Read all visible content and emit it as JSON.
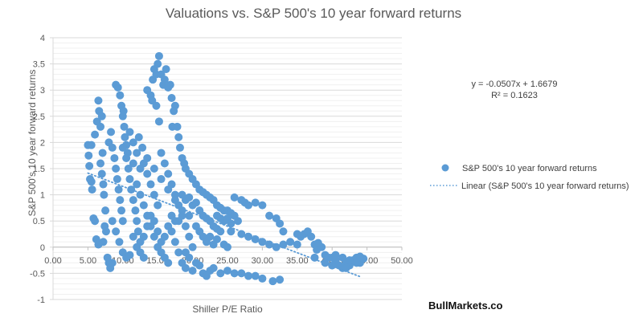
{
  "chart_data": {
    "type": "scatter",
    "title": "Valuations vs. S&P 500's 10 year forward returns",
    "xlabel": "Shiller P/E Ratio",
    "ylabel": "S&P 500's 10 year forward returns",
    "xlim": [
      0,
      50
    ],
    "ylim": [
      -1,
      4
    ],
    "x_ticks": [
      0,
      5,
      10,
      15,
      20,
      25,
      30,
      35,
      40,
      45,
      50
    ],
    "x_tick_labels": [
      "0.00",
      "5.00",
      "10.00",
      "15.00",
      "20.00",
      "25.00",
      "30.00",
      "35.00",
      "40.00",
      "45.00",
      "50.00"
    ],
    "y_ticks": [
      -1,
      -0.5,
      0,
      0.5,
      1,
      1.5,
      2,
      2.5,
      3,
      3.5,
      4
    ],
    "y_tick_labels": [
      "-1",
      "-0.5",
      "0",
      "0.5",
      "1",
      "1.5",
      "2",
      "2.5",
      "3",
      "3.5",
      "4"
    ],
    "grid": {
      "major_step": 0.5,
      "minor_step": 0.1,
      "axis": "y"
    },
    "legend_position": "right",
    "series": [
      {
        "name": "S&P 500's 10 year forward returns",
        "color": "#5B9BD5",
        "marker": "circle",
        "points": [
          [
            5.0,
            1.95
          ],
          [
            5.1,
            1.75
          ],
          [
            5.2,
            1.55
          ],
          [
            5.3,
            1.3
          ],
          [
            5.5,
            1.25
          ],
          [
            5.6,
            1.1
          ],
          [
            5.8,
            0.55
          ],
          [
            6.0,
            0.5
          ],
          [
            6.2,
            0.15
          ],
          [
            6.5,
            0.05
          ],
          [
            5.5,
            1.95
          ],
          [
            6.0,
            2.15
          ],
          [
            6.3,
            2.4
          ],
          [
            6.5,
            2.8
          ],
          [
            6.6,
            2.6
          ],
          [
            6.8,
            2.3
          ],
          [
            7.0,
            2.5
          ],
          [
            7.1,
            1.8
          ],
          [
            6.8,
            1.6
          ],
          [
            7.2,
            1.2
          ],
          [
            7.0,
            1.4
          ],
          [
            7.3,
            1.0
          ],
          [
            7.5,
            0.7
          ],
          [
            7.4,
            0.4
          ],
          [
            7.6,
            0.3
          ],
          [
            7.2,
            0.1
          ],
          [
            7.8,
            -0.2
          ],
          [
            8.0,
            -0.3
          ],
          [
            8.2,
            -0.4
          ],
          [
            8.5,
            -0.3
          ],
          [
            8.0,
            2.0
          ],
          [
            8.3,
            2.2
          ],
          [
            8.5,
            1.9
          ],
          [
            8.8,
            1.7
          ],
          [
            9.0,
            1.5
          ],
          [
            9.2,
            1.3
          ],
          [
            9.4,
            1.1
          ],
          [
            9.6,
            0.9
          ],
          [
            9.8,
            0.7
          ],
          [
            10.0,
            0.5
          ],
          [
            9.0,
            3.1
          ],
          [
            9.3,
            3.05
          ],
          [
            9.6,
            2.9
          ],
          [
            9.8,
            2.7
          ],
          [
            10.0,
            2.5
          ],
          [
            10.2,
            2.3
          ],
          [
            10.1,
            2.6
          ],
          [
            10.3,
            2.1
          ],
          [
            10.5,
            1.95
          ],
          [
            10.7,
            1.8
          ],
          [
            10.0,
            1.9
          ],
          [
            10.5,
            1.7
          ],
          [
            10.8,
            1.5
          ],
          [
            11.0,
            1.3
          ],
          [
            11.2,
            1.1
          ],
          [
            11.5,
            0.9
          ],
          [
            11.8,
            0.7
          ],
          [
            12.0,
            0.5
          ],
          [
            12.2,
            0.3
          ],
          [
            12.5,
            0.1
          ],
          [
            8.5,
            0.5
          ],
          [
            9.0,
            0.3
          ],
          [
            9.5,
            0.1
          ],
          [
            10.0,
            -0.1
          ],
          [
            10.5,
            -0.2
          ],
          [
            11.0,
            -0.15
          ],
          [
            11.5,
            0.2
          ],
          [
            12.0,
            0.0
          ],
          [
            12.5,
            -0.1
          ],
          [
            13.0,
            -0.2
          ],
          [
            11.0,
            2.2
          ],
          [
            11.5,
            2.0
          ],
          [
            12.0,
            1.8
          ],
          [
            12.3,
            2.1
          ],
          [
            12.8,
            1.9
          ],
          [
            13.0,
            1.6
          ],
          [
            13.5,
            1.4
          ],
          [
            14.0,
            1.2
          ],
          [
            14.5,
            1.0
          ],
          [
            15.0,
            0.8
          ],
          [
            12.0,
            1.2
          ],
          [
            12.5,
            1.0
          ],
          [
            13.0,
            0.8
          ],
          [
            13.5,
            0.6
          ],
          [
            14.0,
            0.4
          ],
          [
            14.5,
            0.2
          ],
          [
            15.0,
            0.0
          ],
          [
            15.5,
            -0.1
          ],
          [
            16.0,
            -0.2
          ],
          [
            16.5,
            -0.3
          ],
          [
            13.5,
            3.0
          ],
          [
            14.0,
            2.9
          ],
          [
            14.3,
            3.2
          ],
          [
            14.5,
            3.4
          ],
          [
            14.8,
            3.3
          ],
          [
            15.0,
            3.5
          ],
          [
            15.2,
            3.65
          ],
          [
            15.5,
            3.3
          ],
          [
            15.8,
            3.1
          ],
          [
            16.0,
            3.2
          ],
          [
            16.2,
            3.4
          ],
          [
            16.5,
            3.05
          ],
          [
            16.8,
            3.1
          ],
          [
            17.0,
            2.85
          ],
          [
            14.2,
            2.8
          ],
          [
            14.8,
            2.7
          ],
          [
            15.2,
            2.4
          ],
          [
            17.5,
            2.7
          ],
          [
            17.3,
            2.6
          ],
          [
            17.1,
            2.3
          ],
          [
            15.5,
            1.8
          ],
          [
            16.0,
            1.6
          ],
          [
            16.5,
            1.4
          ],
          [
            17.0,
            1.2
          ],
          [
            17.5,
            1.0
          ],
          [
            18.0,
            0.8
          ],
          [
            18.5,
            0.6
          ],
          [
            19.0,
            0.4
          ],
          [
            19.5,
            0.2
          ],
          [
            20.0,
            0.0
          ],
          [
            17.8,
            2.3
          ],
          [
            18.0,
            2.1
          ],
          [
            18.2,
            1.9
          ],
          [
            18.5,
            1.7
          ],
          [
            18.8,
            1.6
          ],
          [
            19.0,
            1.5
          ],
          [
            19.5,
            1.4
          ],
          [
            20.0,
            1.3
          ],
          [
            20.5,
            1.2
          ],
          [
            21.0,
            1.1
          ],
          [
            21.5,
            1.05
          ],
          [
            22.0,
            1.0
          ],
          [
            22.5,
            0.95
          ],
          [
            23.0,
            0.9
          ],
          [
            23.5,
            0.8
          ],
          [
            24.0,
            0.75
          ],
          [
            24.5,
            0.7
          ],
          [
            25.0,
            0.7
          ],
          [
            25.5,
            0.65
          ],
          [
            26.0,
            0.6
          ],
          [
            21.0,
            0.7
          ],
          [
            21.5,
            0.6
          ],
          [
            22.0,
            0.55
          ],
          [
            22.5,
            0.5
          ],
          [
            23.0,
            0.4
          ],
          [
            23.5,
            0.35
          ],
          [
            24.0,
            0.3
          ],
          [
            21.5,
            0.2
          ],
          [
            22.0,
            0.1
          ],
          [
            23.0,
            0.05
          ],
          [
            26.0,
            0.95
          ],
          [
            27.0,
            0.9
          ],
          [
            27.5,
            0.85
          ],
          [
            28.0,
            0.8
          ],
          [
            29.0,
            0.85
          ],
          [
            30.0,
            0.8
          ],
          [
            31.0,
            0.6
          ],
          [
            32.0,
            0.55
          ],
          [
            32.5,
            0.45
          ],
          [
            33.0,
            0.3
          ],
          [
            25.5,
            0.3
          ],
          [
            27.0,
            0.25
          ],
          [
            28.0,
            0.2
          ],
          [
            29.0,
            0.15
          ],
          [
            30.0,
            0.1
          ],
          [
            31.0,
            0.05
          ],
          [
            32.0,
            0.0
          ],
          [
            33.0,
            0.05
          ],
          [
            34.0,
            0.1
          ],
          [
            35.0,
            0.05
          ],
          [
            17.0,
            0.3
          ],
          [
            17.5,
            0.1
          ],
          [
            18.0,
            -0.1
          ],
          [
            18.5,
            -0.3
          ],
          [
            19.0,
            -0.4
          ],
          [
            20.0,
            -0.45
          ],
          [
            21.0,
            -0.35
          ],
          [
            21.5,
            -0.5
          ],
          [
            22.0,
            -0.55
          ],
          [
            22.5,
            -0.45
          ],
          [
            23.0,
            -0.4
          ],
          [
            24.0,
            -0.5
          ],
          [
            25.0,
            -0.45
          ],
          [
            26.0,
            -0.5
          ],
          [
            27.0,
            -0.5
          ],
          [
            28.0,
            -0.55
          ],
          [
            29.0,
            -0.55
          ],
          [
            30.0,
            -0.6
          ],
          [
            31.5,
            -0.65
          ],
          [
            32.5,
            -0.62
          ],
          [
            35.5,
            0.2
          ],
          [
            36.0,
            0.25
          ],
          [
            36.5,
            0.3
          ],
          [
            37.0,
            0.2
          ],
          [
            37.5,
            0.05
          ],
          [
            37.8,
            -0.05
          ],
          [
            37.5,
            -0.2
          ],
          [
            38.5,
            0.0
          ],
          [
            39.0,
            -0.15
          ],
          [
            39.5,
            -0.2
          ],
          [
            40.0,
            -0.2
          ],
          [
            40.5,
            -0.25
          ],
          [
            41.0,
            -0.35
          ],
          [
            41.5,
            -0.4
          ],
          [
            42.0,
            -0.3
          ],
          [
            42.5,
            -0.35
          ],
          [
            43.0,
            -0.25
          ],
          [
            43.5,
            -0.2
          ],
          [
            44.0,
            -0.3
          ],
          [
            44.5,
            -0.22
          ],
          [
            39.0,
            -0.3
          ],
          [
            40.5,
            -0.15
          ],
          [
            41.5,
            -0.2
          ],
          [
            42.5,
            -0.25
          ],
          [
            43.5,
            -0.3
          ],
          [
            44.0,
            -0.18
          ],
          [
            42.0,
            -0.4
          ],
          [
            40.0,
            -0.35
          ],
          [
            38.0,
            0.08
          ],
          [
            35.0,
            0.25
          ],
          [
            18.0,
            0.5
          ],
          [
            18.5,
            0.7
          ],
          [
            19.0,
            0.9
          ],
          [
            19.5,
            0.6
          ],
          [
            20.0,
            0.8
          ],
          [
            20.5,
            0.4
          ],
          [
            21.0,
            0.3
          ],
          [
            19.0,
            -0.1
          ],
          [
            19.5,
            -0.2
          ],
          [
            20.5,
            -0.3
          ],
          [
            13.0,
            0.2
          ],
          [
            13.5,
            0.4
          ],
          [
            14.0,
            0.6
          ],
          [
            14.5,
            0.5
          ],
          [
            15.0,
            0.3
          ],
          [
            15.5,
            0.1
          ],
          [
            16.0,
            0.2
          ],
          [
            16.5,
            0.4
          ],
          [
            17.0,
            0.6
          ],
          [
            17.5,
            0.5
          ],
          [
            11.5,
            1.6
          ],
          [
            12.5,
            1.5
          ],
          [
            13.5,
            1.7
          ],
          [
            14.5,
            1.5
          ],
          [
            15.5,
            1.3
          ],
          [
            16.5,
            1.1
          ],
          [
            17.5,
            0.9
          ],
          [
            18.5,
            1.0
          ],
          [
            19.5,
            0.95
          ],
          [
            20.5,
            0.85
          ],
          [
            24.5,
            0.5
          ],
          [
            25.5,
            0.45
          ],
          [
            26.5,
            0.5
          ],
          [
            23.5,
            0.6
          ],
          [
            24.0,
            0.55
          ],
          [
            25.0,
            0.55
          ],
          [
            22.5,
            0.2
          ],
          [
            23.5,
            0.15
          ],
          [
            24.5,
            0.05
          ],
          [
            25.0,
            0.0
          ]
        ]
      },
      {
        "name": "Linear (S&P 500's 10 year forward returns)",
        "type": "trendline",
        "color": "#5B9BD5",
        "style": "dotted",
        "slope": -0.0507,
        "intercept": 1.6679,
        "x_range": [
          5.0,
          44.0
        ]
      }
    ],
    "annotations": {
      "equation": "y = -0.0507x + 1.6679",
      "r_squared": "R² = 0.1623"
    }
  },
  "watermark": "BullMarkets.co"
}
